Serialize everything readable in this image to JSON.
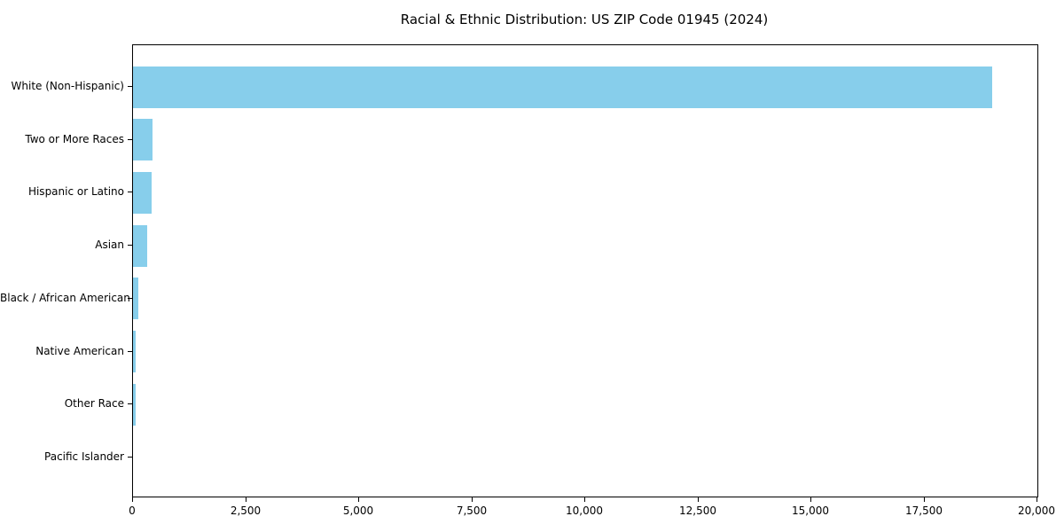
{
  "chart_data": {
    "type": "bar",
    "orientation": "horizontal",
    "title": "Racial & Ethnic Distribution: US ZIP Code 01945 (2024)",
    "categories": [
      "White (Non-Hispanic)",
      "Two or More Races",
      "Hispanic or Latino",
      "Asian",
      "Black / African American",
      "Native American",
      "Other Race",
      "Pacific Islander"
    ],
    "values": [
      19000,
      440,
      415,
      310,
      120,
      58,
      55,
      0
    ],
    "xlabel": "",
    "ylabel": "",
    "xlim": [
      0,
      20000
    ],
    "x_ticks": [
      0,
      2500,
      5000,
      7500,
      10000,
      12500,
      15000,
      17500,
      20000
    ],
    "x_tick_labels": [
      "0",
      "2,500",
      "5,000",
      "7,500",
      "10,000",
      "12,500",
      "15,000",
      "17,500",
      "20,000"
    ],
    "bar_color": "#87CEEB",
    "axis_color": "#000000",
    "background_color": "#ffffff",
    "grid": false,
    "legend": null
  }
}
